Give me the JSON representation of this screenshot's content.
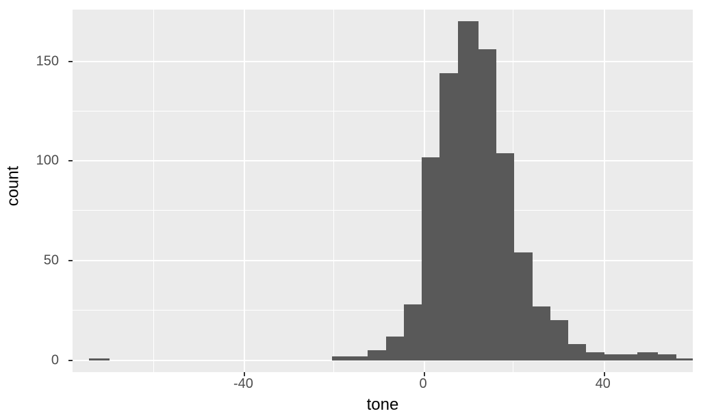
{
  "chart": {
    "type": "histogram",
    "xlabel": "tone",
    "ylabel": "count",
    "background_color": "#ebebeb",
    "grid_color": "#ffffff",
    "bar_fill": "#595959",
    "bar_stroke": "#595959",
    "tick_font_size": 20,
    "label_font_size": 24,
    "tick_color": "#4d4d4d",
    "xlim": [
      -78,
      60
    ],
    "ylim": [
      -6,
      176
    ],
    "x_major_ticks": [
      -40,
      0,
      40
    ],
    "x_minor_ticks": [
      -60,
      -20,
      20
    ],
    "y_major_ticks": [
      0,
      50,
      100,
      150
    ],
    "y_minor_ticks": [
      25,
      75,
      125
    ],
    "bin_width": 4.6,
    "bins": [
      {
        "x": -72,
        "count": 1
      },
      {
        "x": -18,
        "count": 2
      },
      {
        "x": -14,
        "count": 2
      },
      {
        "x": -10,
        "count": 5
      },
      {
        "x": -6,
        "count": 12
      },
      {
        "x": -2,
        "count": 28
      },
      {
        "x": 2,
        "count": 102
      },
      {
        "x": 6,
        "count": 144
      },
      {
        "x": 10,
        "count": 170
      },
      {
        "x": 14,
        "count": 156
      },
      {
        "x": 18,
        "count": 104
      },
      {
        "x": 22,
        "count": 54
      },
      {
        "x": 26,
        "count": 27
      },
      {
        "x": 30,
        "count": 20
      },
      {
        "x": 34,
        "count": 8
      },
      {
        "x": 38,
        "count": 4
      },
      {
        "x": 42,
        "count": 3
      },
      {
        "x": 46,
        "count": 3
      },
      {
        "x": 50,
        "count": 4
      },
      {
        "x": 54,
        "count": 3
      },
      {
        "x": 58,
        "count": 1
      }
    ]
  }
}
